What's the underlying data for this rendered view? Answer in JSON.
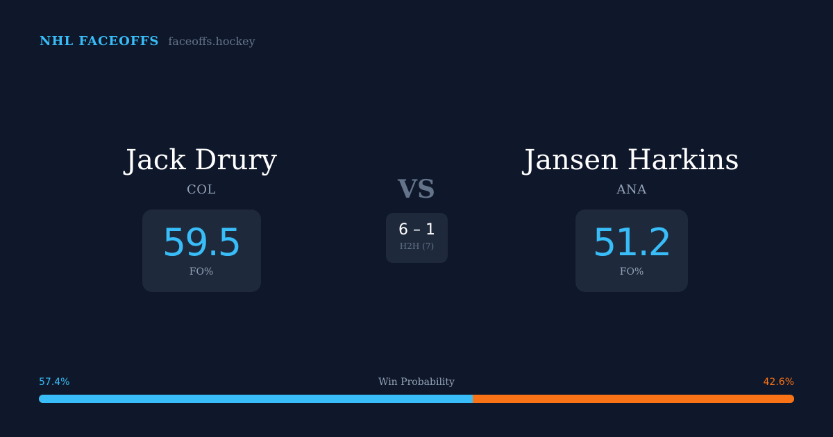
{
  "brand": {
    "name": "NHL FACEOFFS",
    "url": "faceoffs.hockey"
  },
  "players": [
    {
      "name": "Jack Drury",
      "team": "COL",
      "fo_value": "59.5",
      "fo_label": "FO%"
    },
    {
      "name": "Jansen Harkins",
      "team": "ANA",
      "fo_value": "51.2",
      "fo_label": "FO%"
    }
  ],
  "vs": "VS",
  "h2h": {
    "score": "6 – 1",
    "label": "H2H (7)"
  },
  "win_probability": {
    "label": "Win Probability",
    "left": "57.4%",
    "right": "42.6%",
    "left_fraction": 0.574,
    "colors": {
      "left": "#38bdf8",
      "right": "#f97316"
    }
  }
}
